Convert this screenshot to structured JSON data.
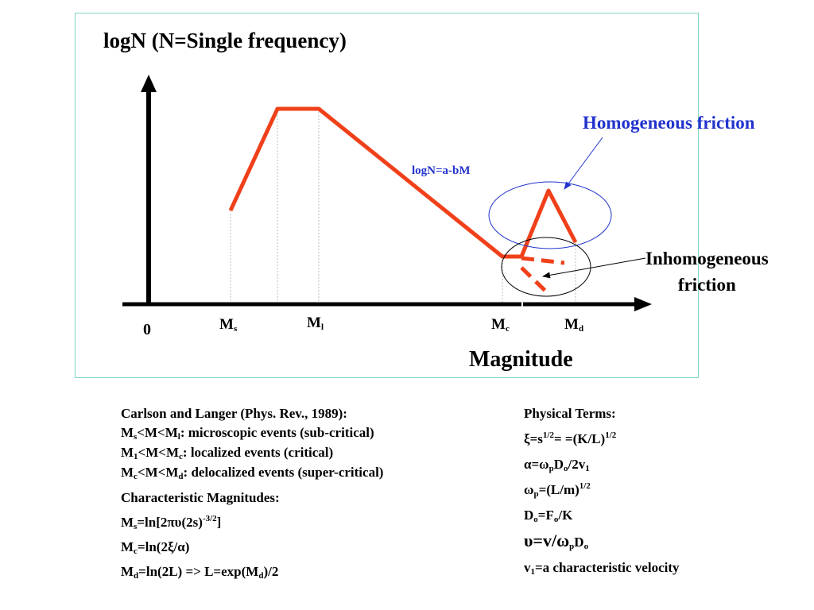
{
  "diagram": {
    "title": "logN (N=Single frequency)",
    "origin_label": "0",
    "x_axis_label": "Magnitude",
    "ticks": [
      {
        "base": "M",
        "sub": "s"
      },
      {
        "base": "M",
        "sub": "l"
      },
      {
        "base": "M",
        "sub": "c"
      },
      {
        "base": "M",
        "sub": "d"
      }
    ],
    "line_annotation": "logN=a-bM",
    "homogeneous_label": "Homogeneous friction",
    "inhomogeneous_label_1": "Inhomogeneous",
    "inhomogeneous_label_2": "friction",
    "colors": {
      "curve": "#f0401a",
      "blue": "#2233cc",
      "frame": "#7fd6c8"
    }
  },
  "left_notes": {
    "heading": "Carlson and Langer (Phys. Rev., 1989):",
    "line1": {
      "a": "M",
      "a_sub": "s",
      "b": "<M<M",
      "b_sub": "l",
      "c": ": microscopic events (sub-critical)"
    },
    "line2": {
      "a": "M",
      "a_sub": "1",
      "b": "<M<M",
      "b_sub": "c",
      "c": ": localized events (critical)"
    },
    "line3": {
      "a": "M",
      "a_sub": "c",
      "b": "<M<M",
      "b_sub": "d",
      "c": ": delocalized events (super-critical)"
    },
    "char_heading": "Characteristic Magnitudes:",
    "ms": {
      "a": "M",
      "a_sub": "s",
      "b": "=ln[2πυ(2s)",
      "sup": "-3/2",
      "c": "]"
    },
    "mc": {
      "a": "M",
      "a_sub": "c",
      "b": "=ln(2ξ/α)"
    },
    "md": {
      "a": "M",
      "a_sub": "d",
      "b": "=ln(2L) => L=exp(M",
      "b_sub": "d",
      "c": ")/2"
    }
  },
  "right_notes": {
    "heading": "Physical Terms:",
    "xi": {
      "a": "ξ=s",
      "sup": "1/2",
      "b": "= =(K/L)",
      "sup2": "1/2"
    },
    "alpha": {
      "a": "α=ω",
      "sub1": "p",
      "b": "D",
      "sub2": "o",
      "c": "/2v",
      "sub3": "1"
    },
    "omega": {
      "a": "ω",
      "sub": "p",
      "b": "=(L/m)",
      "sup": "1/2"
    },
    "d0": {
      "a": "D",
      "sub1": "o",
      "b": "=F",
      "sub2": "o",
      "c": "/K"
    },
    "upsilon": {
      "a": "υ=v/ω",
      "sub1": "p",
      "b": "D",
      "sub2": "o"
    },
    "v1": {
      "a": "v",
      "sub": "1",
      "b": "=a characteristic velocity"
    }
  }
}
